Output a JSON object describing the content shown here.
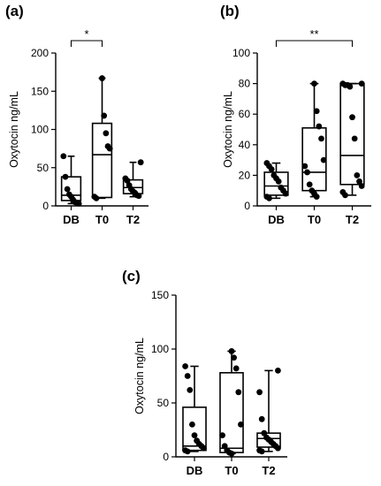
{
  "chart_data": [
    {
      "type": "box",
      "panel_label": "(a)",
      "ylabel": "Oxytocin ng/mL",
      "ylim": [
        0,
        200
      ],
      "yticks": [
        0,
        50,
        100,
        150,
        200
      ],
      "categories": [
        "DB",
        "T0",
        "T2"
      ],
      "boxes": [
        {
          "min": 3,
          "q1": 7,
          "median": 14,
          "q3": 38,
          "max": 65
        },
        {
          "min": 10,
          "q1": 11,
          "median": 67,
          "q3": 108,
          "max": 167
        },
        {
          "min": 12,
          "q1": 16,
          "median": 24,
          "q3": 34,
          "max": 57
        }
      ],
      "points": [
        [
          65,
          38,
          22,
          15,
          12,
          8,
          5,
          4,
          3
        ],
        [
          167,
          118,
          95,
          78,
          75,
          12,
          10
        ],
        [
          57,
          36,
          33,
          27,
          22,
          19,
          17,
          14,
          13
        ]
      ],
      "significance": [
        {
          "from": 0,
          "to": 1,
          "label": "*"
        }
      ]
    },
    {
      "type": "box",
      "panel_label": "(b)",
      "ylabel": "Oxytocin ng/mL",
      "ylim": [
        0,
        100
      ],
      "yticks": [
        0,
        20,
        40,
        60,
        80,
        100
      ],
      "categories": [
        "DB",
        "T0",
        "T2"
      ],
      "boxes": [
        {
          "min": 5,
          "q1": 7,
          "median": 13,
          "q3": 22,
          "max": 28
        },
        {
          "min": 6,
          "q1": 10,
          "median": 22,
          "q3": 51,
          "max": 80
        },
        {
          "min": 7,
          "q1": 14,
          "median": 33,
          "q3": 80,
          "max": 80
        }
      ],
      "points": [
        [
          28,
          26,
          24,
          20,
          18,
          16,
          12,
          10,
          8,
          6,
          5
        ],
        [
          80,
          62,
          52,
          44,
          30,
          26,
          22,
          14,
          10,
          8,
          6
        ],
        [
          80,
          80,
          79,
          79,
          78,
          58,
          44,
          20,
          16,
          13,
          9,
          7
        ]
      ],
      "significance": [
        {
          "from": 0,
          "to": 2,
          "label": "**"
        }
      ]
    },
    {
      "type": "box",
      "panel_label": "(c)",
      "ylabel": "Oxytocin ng/mL",
      "ylim": [
        0,
        150
      ],
      "yticks": [
        0,
        50,
        100,
        150
      ],
      "categories": [
        "DB",
        "T0",
        "T2"
      ],
      "boxes": [
        {
          "min": 5,
          "q1": 6,
          "median": 10,
          "q3": 46,
          "max": 84
        },
        {
          "min": 3,
          "q1": 4,
          "median": 8,
          "q3": 78,
          "max": 98
        },
        {
          "min": 5,
          "q1": 9,
          "median": 17,
          "q3": 22,
          "max": 80
        }
      ],
      "points": [
        [
          84,
          75,
          62,
          30,
          20,
          15,
          12,
          10,
          8,
          6,
          5
        ],
        [
          98,
          92,
          82,
          60,
          30,
          20,
          10,
          6,
          4,
          3
        ],
        [
          80,
          60,
          35,
          22,
          18,
          16,
          14,
          12,
          10,
          8,
          6,
          5
        ]
      ],
      "significance": []
    }
  ]
}
